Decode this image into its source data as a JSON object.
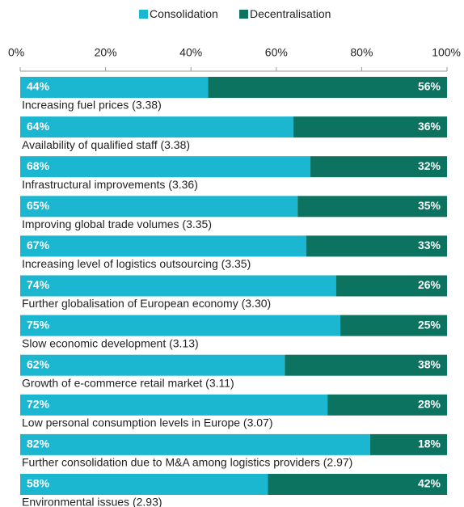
{
  "chart_data": {
    "type": "stacked_bar_horizontal",
    "categories": [
      "Increasing fuel prices (3.38)",
      "Availability of qualified staff (3.38)",
      "Infrastructural improvements (3.36)",
      "Improving global trade volumes (3.35)",
      "Increasing level of logistics outsourcing (3.35)",
      "Further globalisation of European economy (3.30)",
      "Slow economic development (3.13)",
      "Growth of e-commerce retail market (3.11)",
      "Low personal consumption levels in Europe (3.07)",
      "Further consolidation due to M&A among logistics providers (2.97)",
      "Environmental issues (2.93)"
    ],
    "series": [
      {
        "name": "Consolidation",
        "color": "#1bb6cf",
        "values": [
          44,
          64,
          68,
          65,
          67,
          74,
          75,
          62,
          72,
          82,
          58
        ],
        "value_labels": [
          "44%",
          "64%",
          "68%",
          "65%",
          "67%",
          "74%",
          "75%",
          "62%",
          "72%",
          "82%",
          "58%"
        ]
      },
      {
        "name": "Decentralisation",
        "color": "#0b7360",
        "values": [
          56,
          36,
          32,
          35,
          33,
          26,
          25,
          38,
          28,
          18,
          42
        ],
        "value_labels": [
          "56%",
          "36%",
          "32%",
          "35%",
          "33%",
          "26%",
          "25%",
          "38%",
          "28%",
          "18%",
          "42%"
        ]
      }
    ],
    "xlim": [
      0,
      100
    ],
    "xticks": [
      {
        "value": 0,
        "label": "0%"
      },
      {
        "value": 20,
        "label": "20%"
      },
      {
        "value": 40,
        "label": "40%"
      },
      {
        "value": 60,
        "label": "60%"
      },
      {
        "value": 80,
        "label": "80%"
      },
      {
        "value": 100,
        "label": "100%"
      }
    ],
    "legend": "top"
  }
}
